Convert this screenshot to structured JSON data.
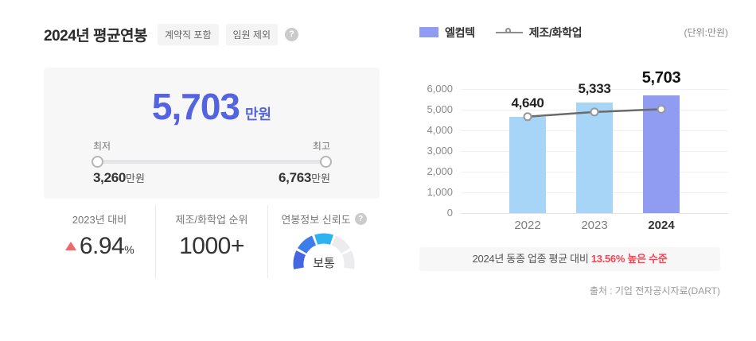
{
  "header": {
    "title": "2024년 평균연봉",
    "badges": [
      {
        "label": "계약직 포함"
      },
      {
        "label": "임원 제외"
      }
    ],
    "help_icon": "?"
  },
  "salary_card": {
    "value": "5,703",
    "unit": "만원",
    "range": {
      "min_label": "최저",
      "max_label": "최고",
      "min_value": "3,260",
      "min_unit": "만원",
      "max_value": "6,763",
      "max_unit": "만원"
    }
  },
  "stats": {
    "yoy": {
      "label": "2023년 대비",
      "value": "6.94",
      "unit": "%",
      "direction": "up"
    },
    "rank": {
      "label": "제조/화학업 순위",
      "value": "1000+"
    },
    "reliability": {
      "label": "연봉정보 신뢰도",
      "value": "보통",
      "help_icon": "?",
      "level": 3,
      "segments": 5
    }
  },
  "legend": {
    "bar_label": "엘컴텍",
    "line_label": "제조/화학업",
    "unit_note": "(단위:만원)"
  },
  "chart_data": {
    "type": "bar",
    "categories": [
      "2022",
      "2023",
      "2024"
    ],
    "series": [
      {
        "name": "엘컴텍",
        "type": "bar",
        "values": [
          4640,
          5333,
          5703
        ]
      },
      {
        "name": "제조/화학업",
        "type": "line",
        "values": [
          4660,
          4890,
          5022
        ]
      }
    ],
    "ylim": [
      0,
      6000
    ],
    "ytick_step": 1000,
    "highlight_category": "2024",
    "grid": true,
    "legend_position": "top"
  },
  "note": {
    "prefix": "2024년 동종 업종 평균 대비 ",
    "highlight": "13.56% 높은 수준"
  },
  "source": "출처 : 기업 전자공시자료(DART)",
  "colors": {
    "accent": "#5464e1",
    "bar": "#a6d5f8",
    "bar_highlight": "#8f9cf1",
    "line": "#6b6b6b",
    "marker_ring": "#979797",
    "red": "#f94352",
    "triangle": "#ee6a6a",
    "gauge": [
      "#4566e3",
      "#3d7ceb",
      "#2eb3f2",
      "#ececee",
      "#ececee"
    ]
  }
}
